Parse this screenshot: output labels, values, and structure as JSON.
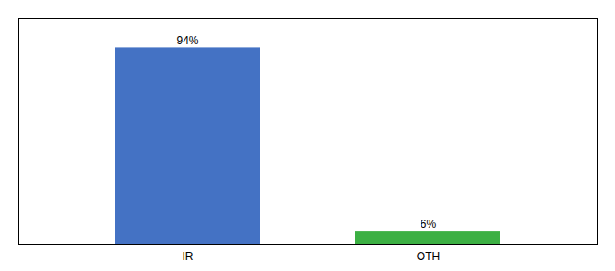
{
  "chart_data": {
    "type": "bar",
    "categories": [
      "IR",
      "OTH"
    ],
    "values": [
      94,
      6
    ],
    "value_labels": [
      "94%",
      "6%"
    ],
    "colors": [
      "#4472c4",
      "#3cb043"
    ],
    "ylim": [
      0,
      108
    ],
    "yticks": [],
    "grid": false,
    "data_labels": true,
    "tick_labels": "x"
  }
}
